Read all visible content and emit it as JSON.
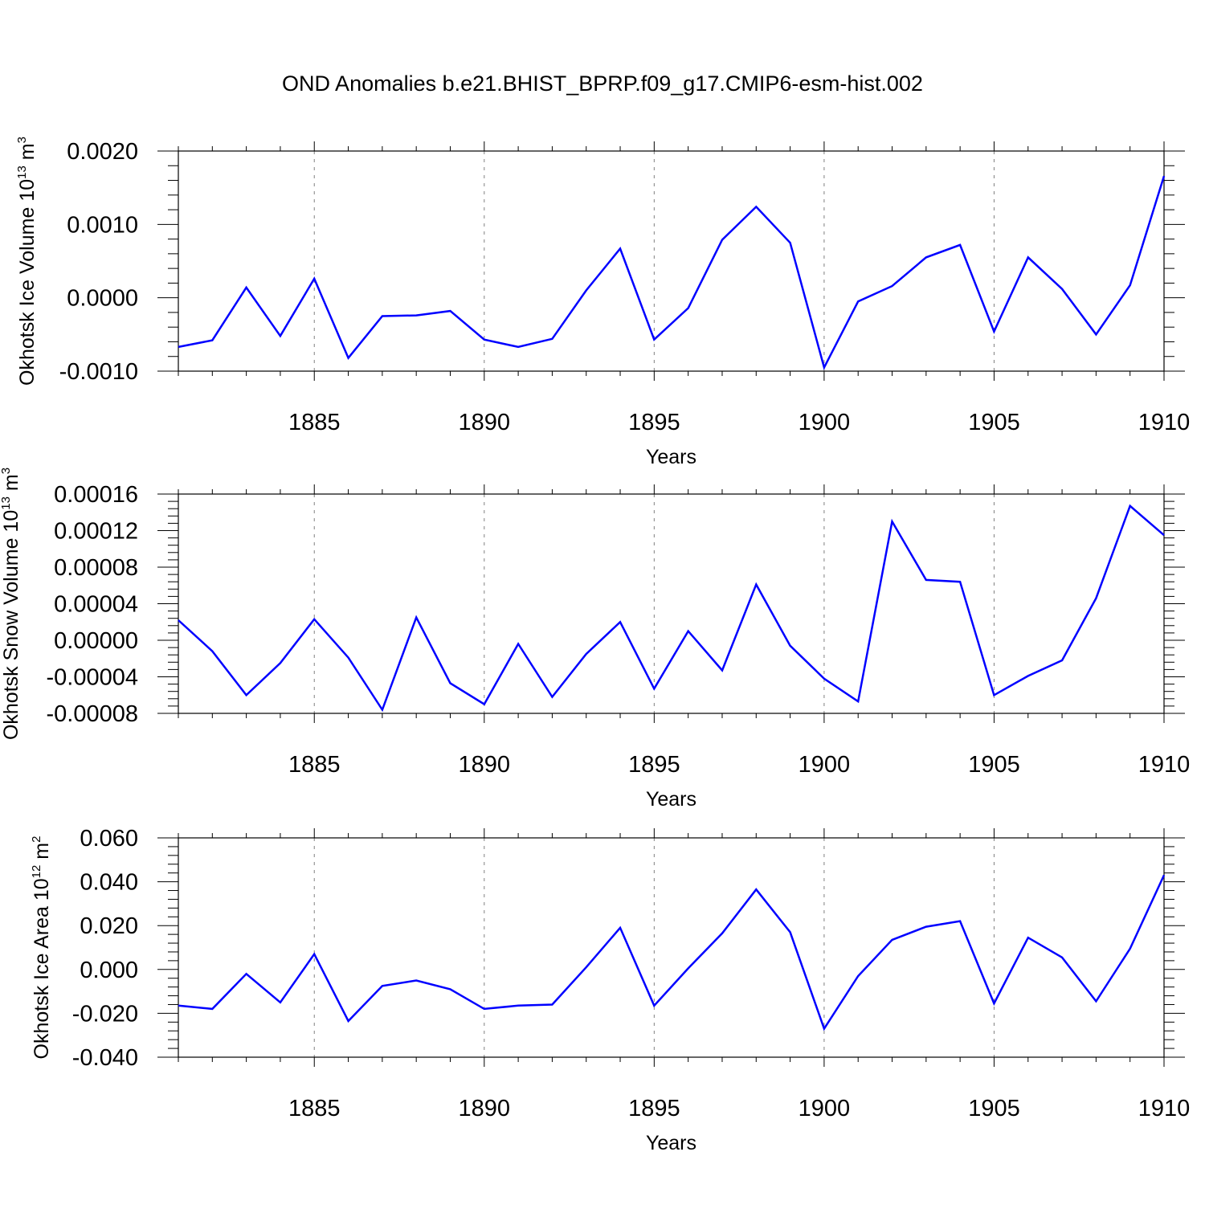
{
  "title": "OND Anomalies b.e21.BHIST_BPRP.f09_g17.CMIP6-esm-hist.002",
  "colors": {
    "line": "#0000ff",
    "axis": "#000000",
    "grid": "#808080",
    "background": "#ffffff"
  },
  "chart_data": [
    {
      "type": "line",
      "ylabel_text": "Okhotsk Ice Volume 10",
      "ylabel_exp": "13",
      "ylabel_unit": " m",
      "ylabel_unit_exp": "3",
      "xlabel": "Years",
      "xlim": [
        1881,
        1910
      ],
      "ylim": [
        -0.001,
        0.002
      ],
      "yticks": [
        -0.001,
        0,
        0.001,
        0.002
      ],
      "yticklabels": [
        "-0.0010",
        "0.0000",
        "0.0010",
        "0.0020"
      ],
      "xticks": [
        1885,
        1890,
        1895,
        1900,
        1905,
        1910
      ],
      "xticklabels": [
        "1885",
        "1890",
        "1895",
        "1900",
        "1905",
        "1910"
      ],
      "x": [
        1881,
        1882,
        1883,
        1884,
        1885,
        1886,
        1887,
        1888,
        1889,
        1890,
        1891,
        1892,
        1893,
        1894,
        1895,
        1896,
        1897,
        1898,
        1899,
        1900,
        1901,
        1902,
        1903,
        1904,
        1905,
        1906,
        1907,
        1908,
        1909,
        1910
      ],
      "series": [
        {
          "name": "Okhotsk Ice Volume",
          "values": [
            -0.00067,
            -0.00058,
            0.00014,
            -0.00052,
            0.00026,
            -0.00082,
            -0.00025,
            -0.00024,
            -0.00018,
            -0.00057,
            -0.00067,
            -0.00056,
            0.0001,
            0.00067,
            -0.00057,
            -0.00014,
            0.00079,
            0.00124,
            0.00075,
            -0.00095,
            -5e-05,
            0.00016,
            0.00055,
            0.00072,
            -0.00046,
            0.00055,
            0.00012,
            -0.0005,
            0.00017,
            0.00166
          ]
        }
      ]
    },
    {
      "type": "line",
      "ylabel_text": "Okhotsk Snow Volume 10",
      "ylabel_exp": "13",
      "ylabel_unit": " m",
      "ylabel_unit_exp": "3",
      "xlabel": "Years",
      "xlim": [
        1881,
        1910
      ],
      "ylim": [
        -8e-05,
        0.00016
      ],
      "yticks": [
        -8e-05,
        -4e-05,
        0,
        4e-05,
        8e-05,
        0.00012,
        0.00016
      ],
      "yticklabels": [
        "-0.00008",
        "-0.00004",
        "0.00000",
        "0.00004",
        "0.00008",
        "0.00012",
        "0.00016"
      ],
      "xticks": [
        1885,
        1890,
        1895,
        1900,
        1905,
        1910
      ],
      "xticklabels": [
        "1885",
        "1890",
        "1895",
        "1900",
        "1905",
        "1910"
      ],
      "x": [
        1881,
        1882,
        1883,
        1884,
        1885,
        1886,
        1887,
        1888,
        1889,
        1890,
        1891,
        1892,
        1893,
        1894,
        1895,
        1896,
        1897,
        1898,
        1899,
        1900,
        1901,
        1902,
        1903,
        1904,
        1905,
        1906,
        1907,
        1908,
        1909,
        1910
      ],
      "series": [
        {
          "name": "Okhotsk Snow Volume",
          "values": [
            2.2e-05,
            -1.2e-05,
            -6e-05,
            -2.5e-05,
            2.3e-05,
            -1.9e-05,
            -7.6e-05,
            2.5e-05,
            -4.7e-05,
            -7e-05,
            -4e-06,
            -6.2e-05,
            -1.5e-05,
            2e-05,
            -5.3e-05,
            1e-05,
            -3.3e-05,
            6.1e-05,
            -6e-06,
            -4.2e-05,
            -6.7e-05,
            0.00013,
            6.6e-05,
            6.4e-05,
            -6e-05,
            -3.9e-05,
            -2.2e-05,
            4.6e-05,
            0.000147,
            0.000115
          ]
        }
      ]
    },
    {
      "type": "line",
      "ylabel_text": "Okhotsk Ice Area 10",
      "ylabel_exp": "12",
      "ylabel_unit": " m",
      "ylabel_unit_exp": "2",
      "xlabel": "Years",
      "xlim": [
        1881,
        1910
      ],
      "ylim": [
        -0.04,
        0.06
      ],
      "yticks": [
        -0.04,
        -0.02,
        0,
        0.02,
        0.04,
        0.06
      ],
      "yticklabels": [
        "-0.040",
        "-0.020",
        "0.000",
        "0.020",
        "0.040",
        "0.060"
      ],
      "xticks": [
        1885,
        1890,
        1895,
        1900,
        1905,
        1910
      ],
      "xticklabels": [
        "1885",
        "1890",
        "1895",
        "1900",
        "1905",
        "1910"
      ],
      "x": [
        1881,
        1882,
        1883,
        1884,
        1885,
        1886,
        1887,
        1888,
        1889,
        1890,
        1891,
        1892,
        1893,
        1894,
        1895,
        1896,
        1897,
        1898,
        1899,
        1900,
        1901,
        1902,
        1903,
        1904,
        1905,
        1906,
        1907,
        1908,
        1909,
        1910
      ],
      "series": [
        {
          "name": "Okhotsk Ice Area",
          "values": [
            -0.0165,
            -0.018,
            -0.002,
            -0.015,
            0.007,
            -0.0235,
            -0.0075,
            -0.005,
            -0.009,
            -0.018,
            -0.0165,
            -0.016,
            0.001,
            0.019,
            -0.0165,
            0.0005,
            0.0165,
            0.0365,
            0.017,
            -0.027,
            -0.003,
            0.0135,
            0.0195,
            0.022,
            -0.0155,
            0.0145,
            0.0055,
            -0.0145,
            0.0095,
            0.043
          ]
        }
      ]
    }
  ]
}
